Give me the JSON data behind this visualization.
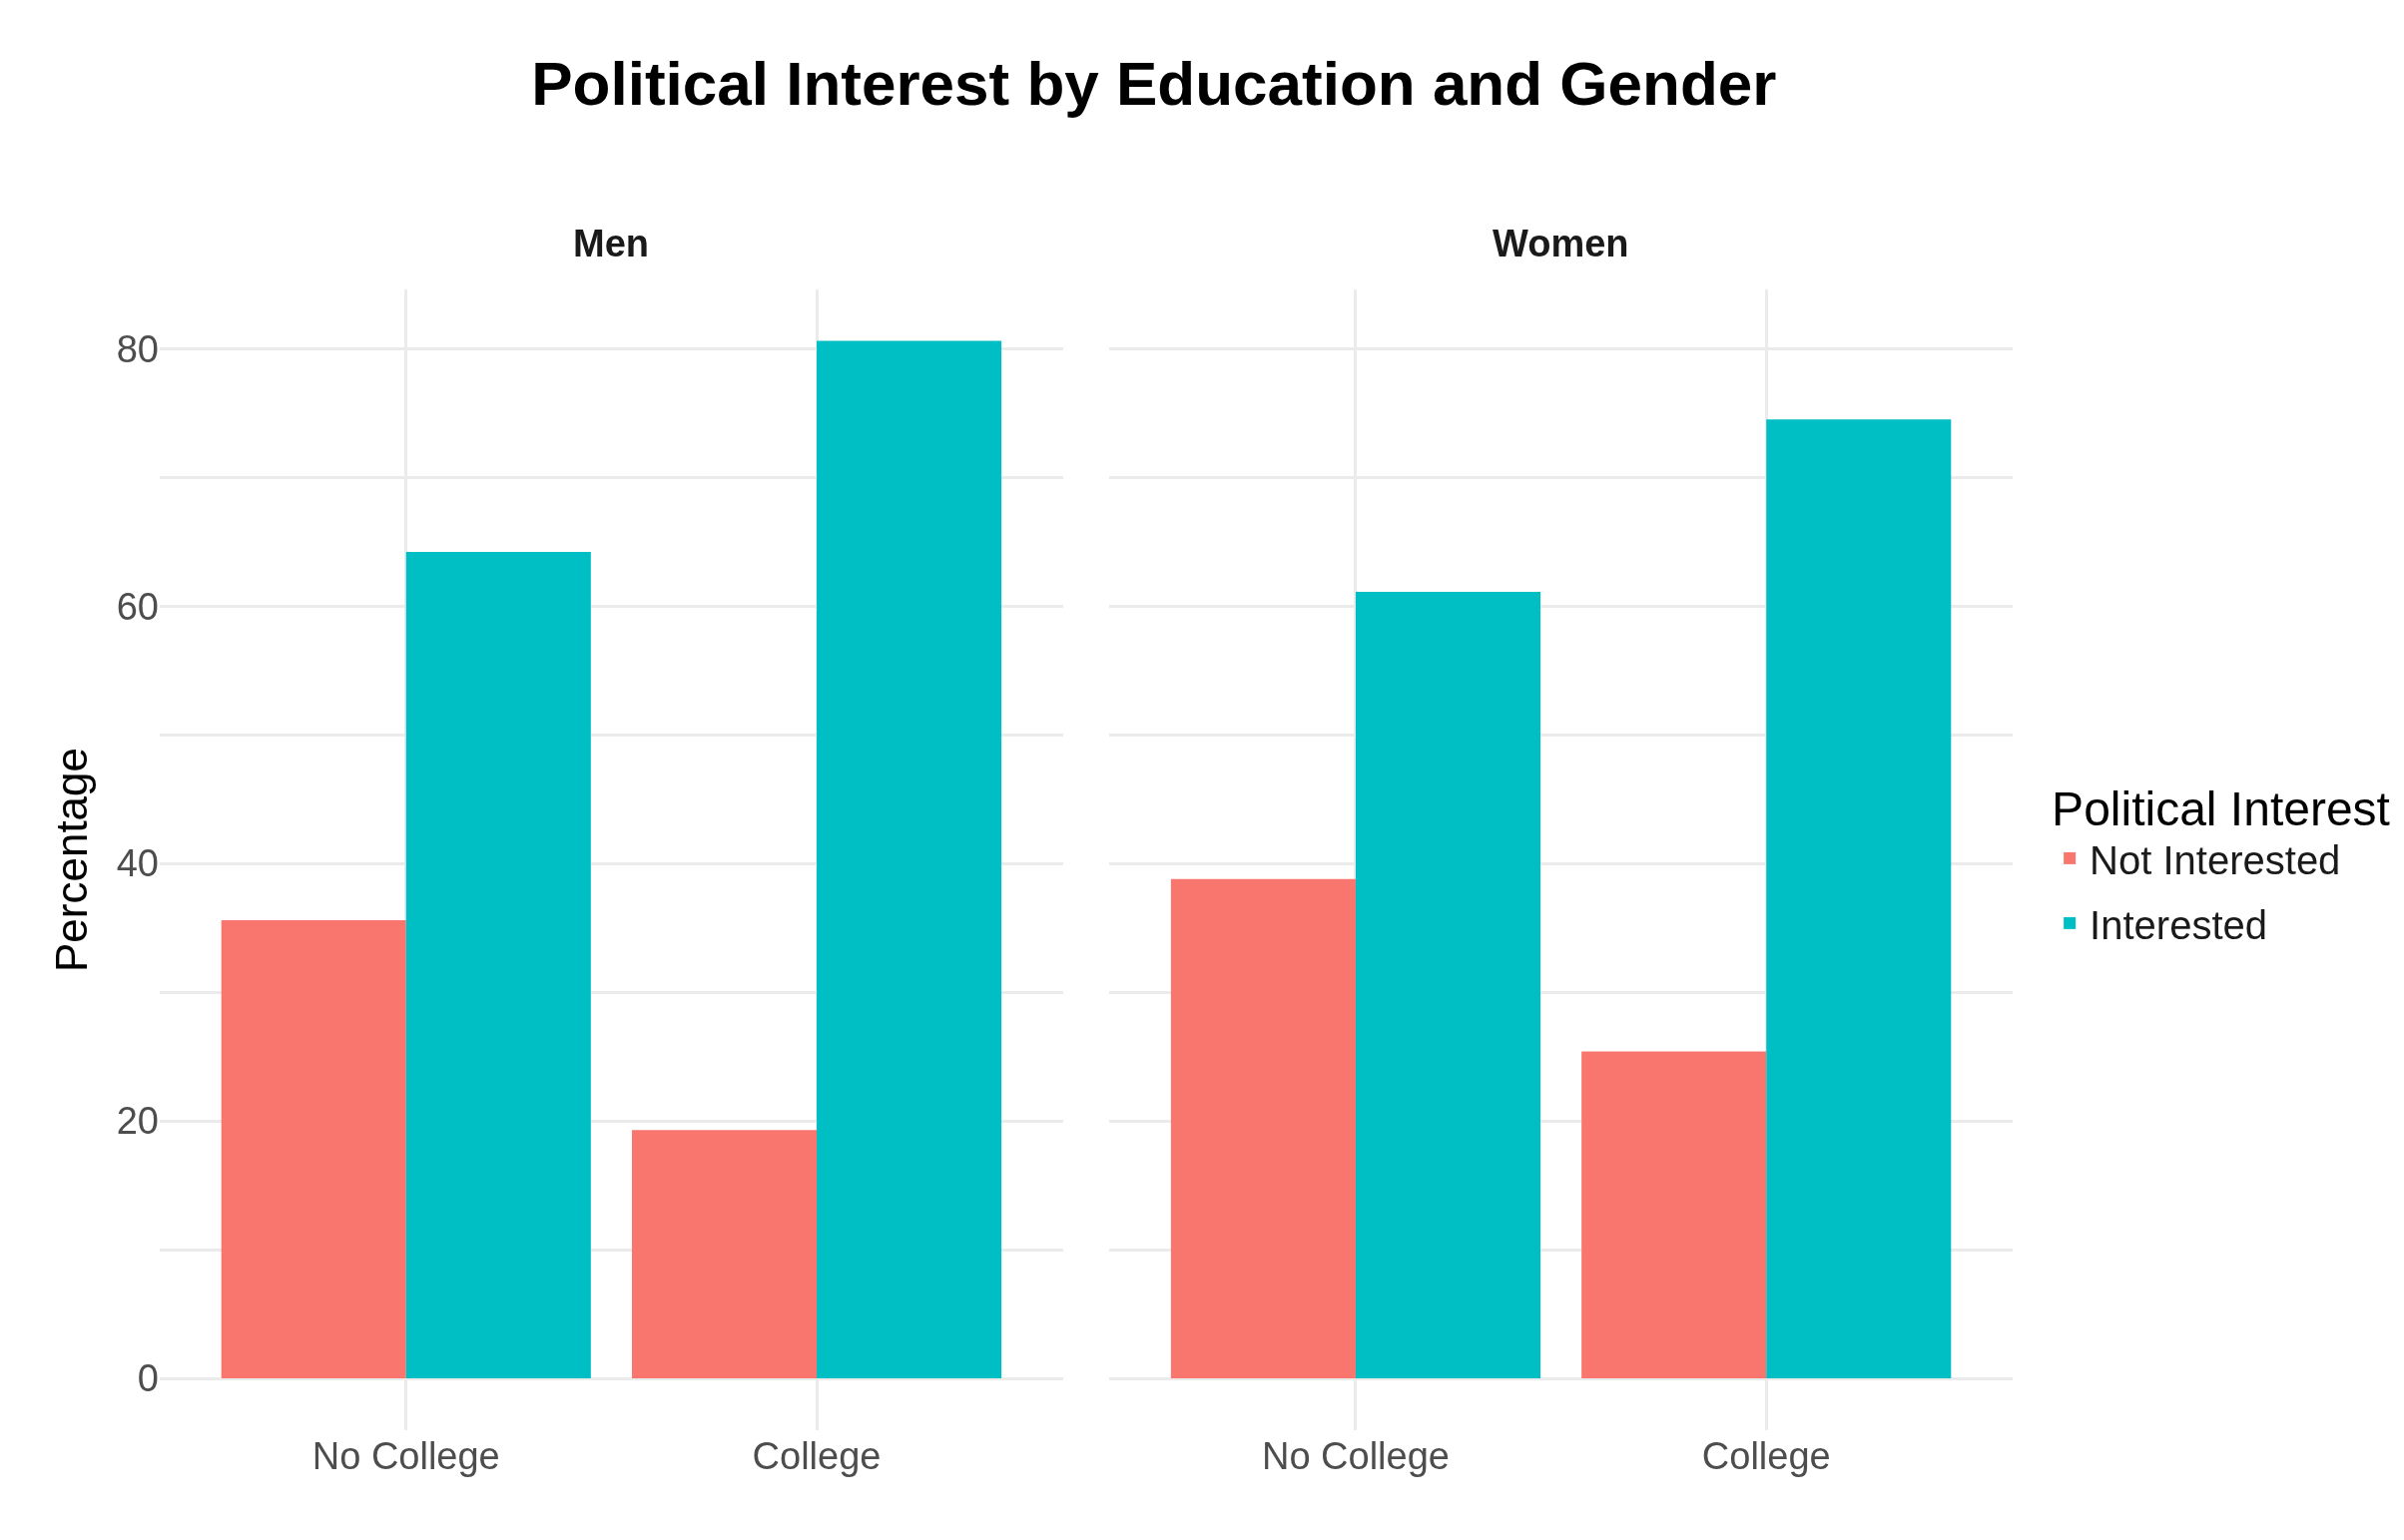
{
  "chart_data": [
    {
      "type": "bar",
      "title": "Political Interest by Education and Gender",
      "subtitle": "Men",
      "legend_title": "Political Interest",
      "ylabel": "Percentage",
      "categories": [
        "No College",
        "College"
      ],
      "series": [
        {
          "name": "Not Interested",
          "color": "#f8766d",
          "values": [
            35.6,
            19.3
          ]
        },
        {
          "name": "Interested",
          "color": "#00bfc4",
          "values": [
            64.2,
            80.6
          ]
        }
      ],
      "ylim": [
        -4.03,
        84.6
      ],
      "yticks": [
        0,
        {
          "value": 10,
          "label": null
        },
        20,
        {
          "value": 30,
          "label": null
        },
        40,
        {
          "value": 50,
          "label": null
        },
        60,
        {
          "value": 70,
          "label": null
        },
        80
      ],
      "grid": true,
      "legend": "right"
    },
    {
      "type": "bar",
      "subtitle": "Women",
      "categories": [
        "No College",
        "College"
      ],
      "series": [
        {
          "color": "#f8766d",
          "values": [
            38.8,
            25.4
          ]
        },
        {
          "color": "#00bfc4",
          "values": [
            61.1,
            74.5
          ]
        }
      ],
      "ylim": [
        -4.03,
        84.6
      ],
      "yticks": [
        0,
        {
          "value": 10,
          "label": null
        },
        20,
        {
          "value": 30,
          "label": null
        },
        40,
        {
          "value": 50,
          "label": null
        },
        60,
        {
          "value": 70,
          "label": null
        },
        80
      ],
      "grid": true,
      "tick_labels": "x"
    }
  ]
}
